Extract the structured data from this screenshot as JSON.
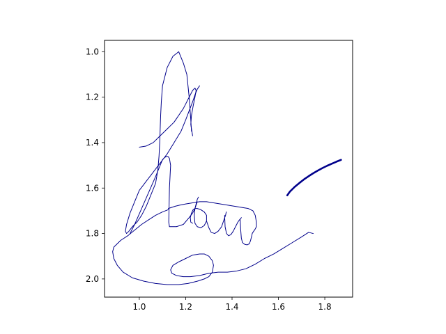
{
  "chart_data": {
    "type": "line",
    "title": "",
    "xlabel": "",
    "ylabel": "",
    "xlim": [
      0.85,
      1.92
    ],
    "ylim": [
      2.08,
      0.95
    ],
    "y_inverted": true,
    "grid": false,
    "legend": "none",
    "x_ticks": [
      1.0,
      1.2,
      1.4,
      1.6,
      1.8
    ],
    "x_tick_labels": [
      "1.0",
      "1.2",
      "1.4",
      "1.6",
      "1.8"
    ],
    "y_ticks": [
      1.0,
      1.2,
      1.4,
      1.6,
      1.8,
      2.0
    ],
    "y_tick_labels": [
      "1.0",
      "1.2",
      "1.4",
      "1.6",
      "1.8",
      "2.0"
    ],
    "series": [
      {
        "color": "#00008b",
        "stroke": "thin",
        "x": [
          1.0,
          1.03,
          1.06,
          1.09,
          1.12,
          1.15,
          1.17,
          1.19,
          1.2,
          1.21,
          1.22,
          1.23,
          1.24,
          1.245,
          1.24,
          1.232,
          1.225,
          1.222,
          1.23
        ],
        "y": [
          1.42,
          1.415,
          1.4,
          1.37,
          1.34,
          1.31,
          1.28,
          1.25,
          1.23,
          1.21,
          1.19,
          1.17,
          1.16,
          1.17,
          1.2,
          1.24,
          1.28,
          1.32,
          1.37
        ]
      },
      {
        "color": "#00008b",
        "stroke": "thin",
        "x": [
          1.225,
          1.222,
          1.215,
          1.205,
          1.19,
          1.17,
          1.145,
          1.12,
          1.1,
          1.095,
          1.092,
          1.09,
          1.088,
          1.085,
          1.08,
          1.07,
          1.05,
          1.03,
          1.01,
          0.99,
          0.97,
          0.955,
          0.945,
          0.94,
          0.945,
          0.96,
          0.98,
          1.0,
          1.03,
          1.06,
          1.09,
          1.12,
          1.15,
          1.18,
          1.2,
          1.215,
          1.23,
          1.24,
          1.25,
          1.26
        ],
        "y": [
          1.35,
          1.3,
          1.2,
          1.1,
          1.05,
          1.0,
          1.02,
          1.07,
          1.15,
          1.22,
          1.28,
          1.34,
          1.4,
          1.46,
          1.52,
          1.58,
          1.63,
          1.68,
          1.72,
          1.75,
          1.77,
          1.79,
          1.8,
          1.79,
          1.76,
          1.71,
          1.66,
          1.61,
          1.57,
          1.53,
          1.49,
          1.45,
          1.4,
          1.35,
          1.3,
          1.26,
          1.22,
          1.19,
          1.165,
          1.15
        ]
      },
      {
        "color": "#00008b",
        "stroke": "thin",
        "x": [
          0.96,
          0.98,
          1.01,
          1.04,
          1.07,
          1.09,
          1.1,
          1.11,
          1.12,
          1.125,
          1.13,
          1.135,
          1.13,
          1.128,
          1.127,
          1.13,
          1.16,
          1.19,
          1.215,
          1.23,
          1.24,
          1.245,
          1.25,
          1.255
        ],
        "y": [
          1.8,
          1.76,
          1.69,
          1.62,
          1.55,
          1.5,
          1.475,
          1.465,
          1.46,
          1.462,
          1.47,
          1.5,
          1.6,
          1.7,
          1.75,
          1.77,
          1.77,
          1.76,
          1.73,
          1.71,
          1.69,
          1.67,
          1.65,
          1.64
        ]
      },
      {
        "color": "#00008b",
        "stroke": "thin",
        "x": [
          1.25,
          1.24,
          1.237,
          1.24,
          1.25,
          1.265,
          1.28,
          1.29,
          1.29,
          1.28,
          1.265,
          1.25,
          1.24,
          1.232,
          1.225,
          1.22,
          1.222,
          1.23
        ],
        "y": [
          1.66,
          1.69,
          1.72,
          1.755,
          1.77,
          1.775,
          1.765,
          1.745,
          1.72,
          1.705,
          1.695,
          1.69,
          1.69,
          1.695,
          1.71,
          1.73,
          1.75,
          1.755
        ]
      },
      {
        "color": "#00008b",
        "stroke": "thin",
        "x": [
          1.29,
          1.3,
          1.31,
          1.325,
          1.34,
          1.355,
          1.365,
          1.372,
          1.375
        ],
        "y": [
          1.745,
          1.775,
          1.795,
          1.8,
          1.79,
          1.77,
          1.74,
          1.72,
          1.705
        ]
      },
      {
        "color": "#00008b",
        "stroke": "thin",
        "x": [
          1.368,
          1.37,
          1.376,
          1.385,
          1.395,
          1.405,
          1.415,
          1.425,
          1.432,
          1.437,
          1.44
        ],
        "y": [
          1.72,
          1.77,
          1.8,
          1.81,
          1.805,
          1.79,
          1.77,
          1.75,
          1.74,
          1.735,
          1.73
        ],
        "note": ""
      },
      {
        "color": "#00008b",
        "stroke": "thin",
        "x": [
          1.435,
          1.437,
          1.44,
          1.445,
          1.455,
          1.465,
          1.475,
          1.48,
          1.485,
          1.487,
          1.49,
          1.5,
          1.505,
          1.505,
          1.5,
          1.49,
          1.47,
          1.44,
          1.41,
          1.38,
          1.35,
          1.32,
          1.29,
          1.26,
          1.23,
          1.2,
          1.175,
          1.155,
          1.14,
          1.125
        ],
        "y": [
          1.74,
          1.78,
          1.82,
          1.84,
          1.848,
          1.85,
          1.845,
          1.83,
          1.81,
          1.8,
          1.795,
          1.78,
          1.77,
          1.75,
          1.72,
          1.7,
          1.69,
          1.685,
          1.68,
          1.675,
          1.67,
          1.665,
          1.66,
          1.66,
          1.665,
          1.67,
          1.675,
          1.68,
          1.685,
          1.69
        ]
      },
      {
        "color": "#00008b",
        "stroke": "thin",
        "x": [
          1.125,
          1.1,
          1.07,
          1.04,
          1.01,
          0.98,
          0.95,
          0.92,
          0.9,
          0.89,
          0.885,
          0.89,
          0.905,
          0.93,
          0.97,
          1.02,
          1.07,
          1.12,
          1.17,
          1.21,
          1.25,
          1.28,
          1.3,
          1.315,
          1.32,
          1.315,
          1.3,
          1.28,
          1.26,
          1.23,
          1.2,
          1.17,
          1.145,
          1.135,
          1.14,
          1.16,
          1.19,
          1.22,
          1.26,
          1.3,
          1.34,
          1.38,
          1.42,
          1.46,
          1.5,
          1.54,
          1.58,
          1.62,
          1.66,
          1.7,
          1.73,
          1.75
        ],
        "y": [
          1.695,
          1.705,
          1.72,
          1.74,
          1.76,
          1.785,
          1.81,
          1.83,
          1.85,
          1.86,
          1.88,
          1.91,
          1.94,
          1.97,
          1.995,
          2.01,
          2.02,
          2.025,
          2.025,
          2.02,
          2.01,
          2.0,
          1.99,
          1.97,
          1.94,
          1.92,
          1.9,
          1.89,
          1.89,
          1.895,
          1.91,
          1.925,
          1.94,
          1.96,
          1.975,
          1.985,
          1.99,
          1.99,
          1.985,
          1.975,
          1.97,
          1.97,
          1.965,
          1.955,
          1.935,
          1.91,
          1.89,
          1.865,
          1.84,
          1.815,
          1.795,
          1.8
        ]
      },
      {
        "color": "#00008b",
        "stroke": "thick",
        "x": [
          1.638,
          1.65,
          1.67,
          1.69,
          1.71,
          1.73,
          1.75,
          1.77,
          1.79,
          1.81,
          1.83,
          1.85,
          1.87
        ],
        "y": [
          1.632,
          1.615,
          1.595,
          1.578,
          1.562,
          1.548,
          1.535,
          1.523,
          1.512,
          1.502,
          1.493,
          1.484,
          1.476
        ]
      }
    ]
  }
}
